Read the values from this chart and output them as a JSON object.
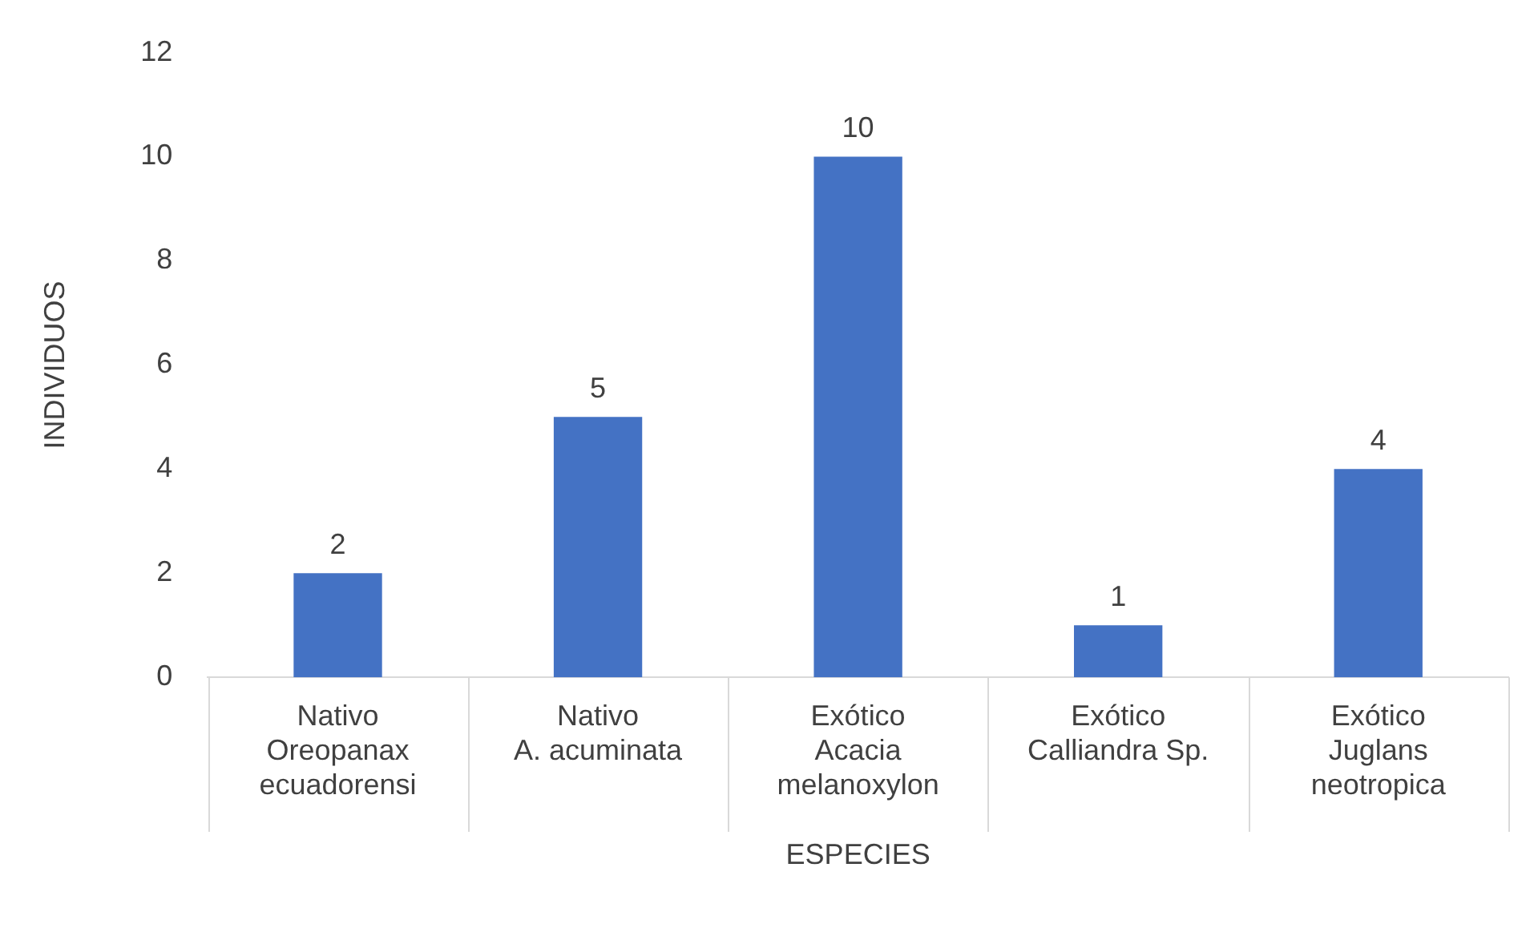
{
  "chart_data": {
    "type": "bar",
    "xlabel": "ESPECIES",
    "ylabel": "INDIVIDUOS",
    "categories": [
      "Nativo\nOreopanax ecuadorensi",
      "Nativo\nA. acuminata",
      "Exótico\nAcacia melanoxylon",
      "Exótico\nCalliandra Sp.",
      "Exótico\nJuglans neotropica"
    ],
    "values": [
      2,
      5,
      10,
      1,
      4
    ],
    "color": "#4472c4",
    "ylim": [
      0,
      12
    ],
    "yticks": [
      0,
      2,
      4,
      6,
      8,
      10,
      12
    ],
    "grid": false,
    "legend": false,
    "data_labels": true
  }
}
